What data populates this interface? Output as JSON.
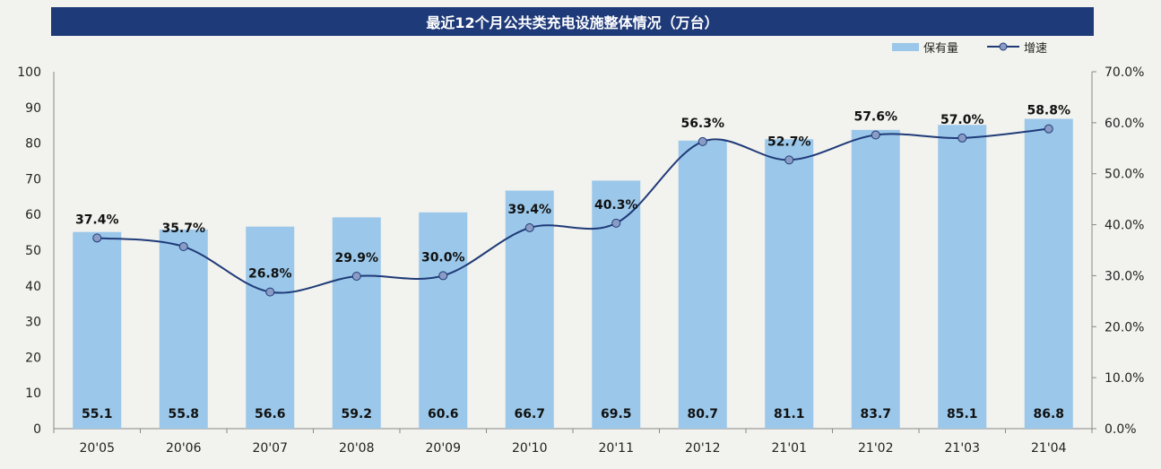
{
  "colors": {
    "title_bg": "#1f3a78",
    "bar": "#9bc8ea",
    "line": "#1f3a78",
    "marker": "#8a9bc4"
  },
  "chart_data": {
    "type": "bar",
    "title": "最近12个月公共类充电设施整体情况（万台）",
    "categories": [
      "20'05",
      "20'06",
      "20'07",
      "20'08",
      "20'09",
      "20'10",
      "20'11",
      "20'12",
      "21'01",
      "21'02",
      "21'03",
      "21'04"
    ],
    "series": [
      {
        "name": "保有量",
        "type": "bar",
        "axis": "left",
        "values": [
          55.1,
          55.8,
          56.6,
          59.2,
          60.6,
          66.7,
          69.5,
          80.7,
          81.1,
          83.7,
          85.1,
          86.8
        ],
        "labels": [
          "55.1",
          "55.8",
          "56.6",
          "59.2",
          "60.6",
          "66.7",
          "69.5",
          "80.7",
          "81.1",
          "83.7",
          "85.1",
          "86.8"
        ]
      },
      {
        "name": "增速",
        "type": "line",
        "axis": "right",
        "values": [
          37.4,
          35.7,
          26.8,
          29.9,
          30.0,
          39.4,
          40.3,
          56.3,
          52.7,
          57.6,
          57.0,
          58.8
        ],
        "labels": [
          "37.4%",
          "35.7%",
          "26.8%",
          "29.9%",
          "30.0%",
          "39.4%",
          "40.3%",
          "56.3%",
          "52.7%",
          "57.6%",
          "57.0%",
          "58.8%"
        ]
      }
    ],
    "y_left": {
      "range": [
        0,
        100
      ],
      "ticks": [
        "0",
        "10",
        "20",
        "30",
        "40",
        "50",
        "60",
        "70",
        "80",
        "90",
        "100"
      ]
    },
    "y_right": {
      "range": [
        0,
        70
      ],
      "ticks": [
        "0.0%",
        "10.0%",
        "20.0%",
        "30.0%",
        "40.0%",
        "50.0%",
        "60.0%",
        "70.0%"
      ]
    },
    "grid": false,
    "legend": "top-right"
  }
}
